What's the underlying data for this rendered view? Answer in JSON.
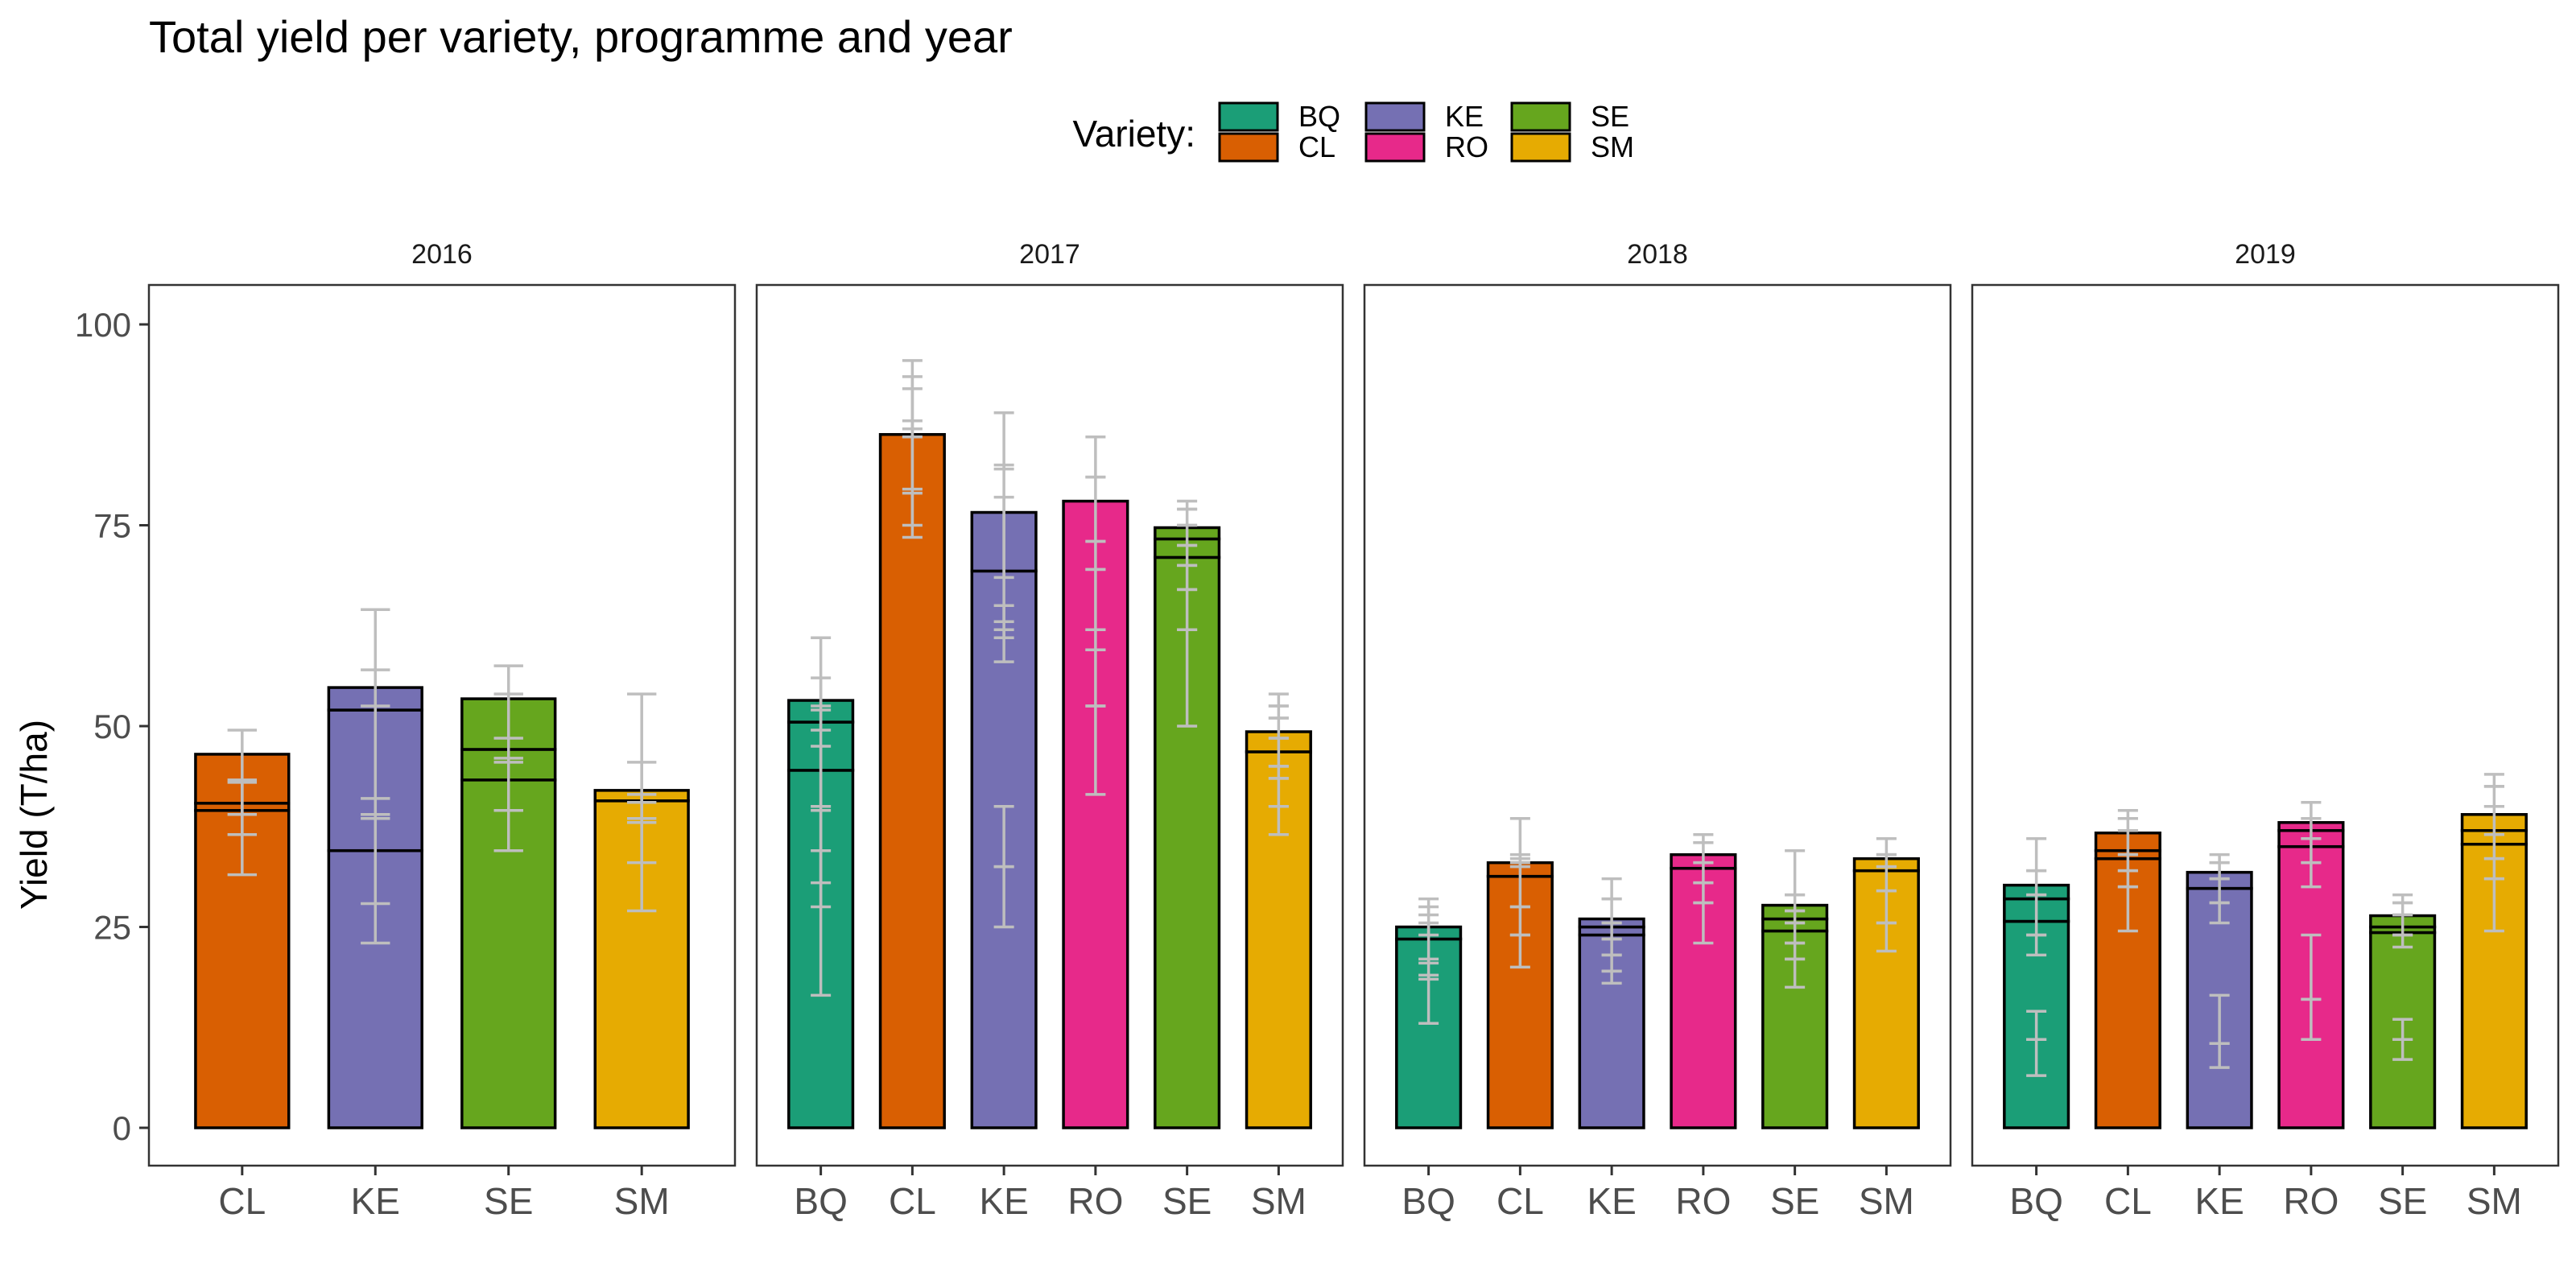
{
  "chart_data": {
    "type": "bar",
    "title": "Total yield per variety, programme and year",
    "ylabel": "Yield (T/ha)",
    "xlabel": "",
    "ylim": [
      -4,
      105
    ],
    "yticks": [
      "0",
      "25",
      "50",
      "75",
      "100"
    ],
    "grid": false,
    "legend": {
      "title": "Variety:",
      "position": "top",
      "entries": [
        {
          "label": "BQ",
          "color": "#1b9e77"
        },
        {
          "label": "CL",
          "color": "#d95f02"
        },
        {
          "label": "KE",
          "color": "#7570b3"
        },
        {
          "label": "RO",
          "color": "#e7298a"
        },
        {
          "label": "SE",
          "color": "#66a61e"
        },
        {
          "label": "SM",
          "color": "#e6ab02"
        }
      ]
    },
    "colors": {
      "BQ": "#1b9e77",
      "CL": "#d95f02",
      "KE": "#7570b3",
      "RO": "#e7298a",
      "SE": "#66a61e",
      "SM": "#e6ab02"
    },
    "panels": [
      {
        "year": "2016",
        "bars": [
          {
            "variety": "CL",
            "stack": [
              39.5,
              0.9,
              6.1
            ],
            "errors": [
              [
                31.5,
                43.0
              ],
              [
                36.5,
                43.3
              ],
              [
                39.0,
                49.5
              ]
            ]
          },
          {
            "variety": "KE",
            "stack": [
              34.5,
              17.5,
              2.8
            ],
            "errors": [
              [
                23.0,
                41.0
              ],
              [
                27.9,
                52.5
              ],
              [
                38.5,
                57.0
              ],
              [
                39.0,
                64.5
              ]
            ]
          },
          {
            "variety": "SE",
            "stack": [
              43.3,
              3.8,
              6.3
            ],
            "errors": [
              [
                34.5,
                39.5
              ],
              [
                39.5,
                46.0
              ],
              [
                45.5,
                54.0
              ],
              [
                48.5,
                57.5
              ]
            ]
          },
          {
            "variety": "SM",
            "stack": [
              40.7,
              1.3
            ],
            "errors": [
              [
                27.0,
                38.0
              ],
              [
                33.0,
                41.5
              ],
              [
                38.5,
                45.5
              ],
              [
                40.5,
                54.0
              ]
            ]
          }
        ]
      },
      {
        "year": "2017",
        "bars": [
          {
            "variety": "BQ",
            "stack": [
              44.5,
              6.0,
              2.7
            ],
            "errors": [
              [
                16.5,
                34.5
              ],
              [
                27.5,
                39.5
              ],
              [
                30.5,
                47.5
              ],
              [
                40.0,
                52.0
              ],
              [
                49.5,
                56.0
              ],
              [
                52.5,
                61.0
              ]
            ]
          },
          {
            "variety": "CL",
            "stack": [
              86.3
            ],
            "errors": [
              [
                73.5,
                79.0
              ],
              [
                75.0,
                88.0
              ],
              [
                79.5,
                92.0
              ],
              [
                86.0,
                93.5
              ],
              [
                87.0,
                95.5
              ]
            ]
          },
          {
            "variety": "KE",
            "stack": [
              69.3,
              7.3
            ],
            "errors": [
              [
                25.0,
                32.5
              ],
              [
                32.5,
                40.0
              ],
              [
                58.0,
                62.0
              ],
              [
                61.0,
                65.0
              ],
              [
                63.0,
                78.5
              ],
              [
                68.5,
                82.5
              ],
              [
                82.0,
                89.0
              ]
            ]
          },
          {
            "variety": "RO",
            "stack": [
              78.0
            ],
            "errors": [
              [
                41.5,
                52.5
              ],
              [
                52.5,
                59.5
              ],
              [
                59.5,
                62.0
              ],
              [
                62.0,
                69.5
              ],
              [
                69.5,
                73.0
              ],
              [
                73.0,
                81.0
              ],
              [
                81.0,
                86.0
              ]
            ]
          },
          {
            "variety": "SE",
            "stack": [
              71.0,
              2.3,
              1.4
            ],
            "errors": [
              [
                50.0,
                62.0
              ],
              [
                62.0,
                67.0
              ],
              [
                67.0,
                70.0
              ],
              [
                70.0,
                72.5
              ],
              [
                72.5,
                75.0
              ],
              [
                75.0,
                77.0
              ],
              [
                77.0,
                78.0
              ]
            ]
          },
          {
            "variety": "SM",
            "stack": [
              46.8,
              2.5
            ],
            "errors": [
              [
                36.5,
                40.0
              ],
              [
                40.0,
                43.5
              ],
              [
                43.5,
                45.0
              ],
              [
                45.0,
                48.5
              ],
              [
                48.5,
                51.0
              ],
              [
                51.0,
                52.5
              ],
              [
                52.5,
                54.0
              ]
            ]
          }
        ]
      },
      {
        "year": "2018",
        "bars": [
          {
            "variety": "BQ",
            "stack": [
              23.5,
              1.5
            ],
            "errors": [
              [
                13.0,
                19.0
              ],
              [
                18.5,
                21.0
              ],
              [
                20.5,
                25.5
              ],
              [
                24.0,
                27.5
              ],
              [
                26.5,
                28.5
              ]
            ]
          },
          {
            "variety": "CL",
            "stack": [
              31.3,
              1.7
            ],
            "errors": [
              [
                20.0,
                24.0
              ],
              [
                24.0,
                27.5
              ],
              [
                27.5,
                33.0
              ],
              [
                32.5,
                34.0
              ],
              [
                33.5,
                38.5
              ]
            ]
          },
          {
            "variety": "KE",
            "stack": [
              24.0,
              1.0,
              1.0
            ],
            "errors": [
              [
                18.0,
                19.5
              ],
              [
                19.5,
                21.5
              ],
              [
                21.5,
                23.5
              ],
              [
                23.5,
                25.5
              ],
              [
                25.5,
                28.5
              ],
              [
                28.5,
                31.0
              ]
            ]
          },
          {
            "variety": "RO",
            "stack": [
              32.3,
              1.7
            ],
            "errors": [
              [
                23.0,
                28.0
              ],
              [
                28.0,
                30.5
              ],
              [
                30.5,
                33.0
              ],
              [
                33.0,
                35.5
              ],
              [
                35.5,
                36.5
              ]
            ]
          },
          {
            "variety": "SE",
            "stack": [
              24.5,
              1.5,
              1.7
            ],
            "errors": [
              [
                17.5,
                21.0
              ],
              [
                21.0,
                23.0
              ],
              [
                23.0,
                25.5
              ],
              [
                25.5,
                27.0
              ],
              [
                27.0,
                29.0
              ],
              [
                29.0,
                34.5
              ]
            ]
          },
          {
            "variety": "SM",
            "stack": [
              32.0,
              1.5
            ],
            "errors": [
              [
                22.0,
                25.5
              ],
              [
                25.5,
                29.5
              ],
              [
                29.5,
                32.5
              ],
              [
                32.5,
                34.0
              ],
              [
                34.0,
                36.0
              ]
            ]
          }
        ]
      },
      {
        "year": "2019",
        "bars": [
          {
            "variety": "BQ",
            "stack": [
              25.7,
              2.8,
              1.7
            ],
            "errors": [
              [
                6.5,
                11.0
              ],
              [
                11.0,
                14.5
              ],
              [
                21.5,
                24.0
              ],
              [
                24.0,
                29.0
              ],
              [
                29.0,
                32.0
              ],
              [
                32.0,
                36.0
              ]
            ]
          },
          {
            "variety": "CL",
            "stack": [
              33.5,
              1.0,
              2.2
            ],
            "errors": [
              [
                24.5,
                30.0
              ],
              [
                30.0,
                32.0
              ],
              [
                32.0,
                34.0
              ],
              [
                34.0,
                37.0
              ],
              [
                37.0,
                38.5
              ],
              [
                38.5,
                39.5
              ]
            ]
          },
          {
            "variety": "KE",
            "stack": [
              29.8,
              2.0
            ],
            "errors": [
              [
                7.5,
                10.5
              ],
              [
                10.5,
                16.5
              ],
              [
                25.5,
                28.0
              ],
              [
                28.0,
                31.0
              ],
              [
                31.0,
                33.0
              ],
              [
                33.0,
                34.0
              ]
            ]
          },
          {
            "variety": "RO",
            "stack": [
              35.0,
              2.0,
              1.0
            ],
            "errors": [
              [
                11.0,
                16.0
              ],
              [
                16.0,
                24.0
              ],
              [
                30.0,
                33.0
              ],
              [
                33.0,
                36.0
              ],
              [
                36.0,
                38.5
              ],
              [
                38.5,
                40.5
              ]
            ]
          },
          {
            "variety": "SE",
            "stack": [
              24.3,
              0.7,
              1.4
            ],
            "errors": [
              [
                8.5,
                11.0
              ],
              [
                11.0,
                13.5
              ],
              [
                22.5,
                24.0
              ],
              [
                24.0,
                26.5
              ],
              [
                26.5,
                28.0
              ],
              [
                28.0,
                29.0
              ]
            ]
          },
          {
            "variety": "SM",
            "stack": [
              35.3,
              1.7,
              2.0
            ],
            "errors": [
              [
                24.5,
                31.0
              ],
              [
                31.0,
                33.5
              ],
              [
                33.5,
                36.5
              ],
              [
                36.5,
                40.0
              ],
              [
                40.0,
                42.5
              ],
              [
                42.5,
                44.0
              ]
            ]
          }
        ]
      }
    ]
  }
}
